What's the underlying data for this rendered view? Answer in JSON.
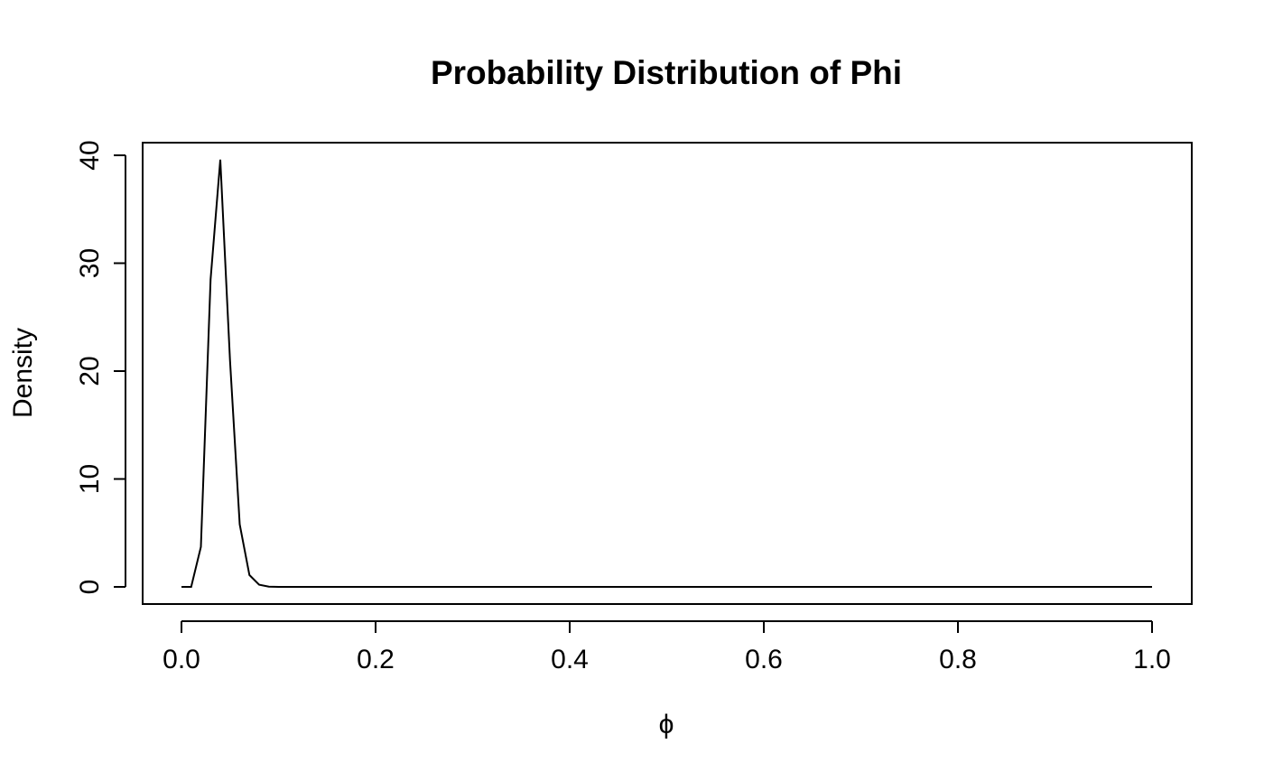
{
  "chart_data": {
    "type": "line",
    "title": "Probability Distribution of Phi",
    "xlabel": "ϕ",
    "ylabel": "Density",
    "xlim": [
      0.0,
      1.0
    ],
    "ylim": [
      0,
      40
    ],
    "grid": false,
    "x_ticks": [
      0.0,
      0.2,
      0.4,
      0.6,
      0.8,
      1.0
    ],
    "x_tick_labels": [
      "0.0",
      "0.2",
      "0.4",
      "0.6",
      "0.8",
      "1.0"
    ],
    "y_ticks": [
      0,
      10,
      20,
      30,
      40
    ],
    "y_tick_labels": [
      "0",
      "10",
      "20",
      "30",
      "40"
    ],
    "series": [
      {
        "color": "#000000",
        "x": [
          0.0,
          0.01,
          0.02,
          0.03,
          0.04,
          0.05,
          0.06,
          0.07,
          0.08,
          0.09,
          0.1,
          0.2,
          0.3,
          0.4,
          0.5,
          0.6,
          0.7,
          0.8,
          0.9,
          1.0
        ],
        "y": [
          0,
          0,
          3.7,
          28.5,
          39.6,
          21.0,
          5.8,
          1.1,
          0.2,
          0.02,
          0,
          0,
          0,
          0,
          0,
          0,
          0,
          0,
          0,
          0
        ]
      }
    ]
  }
}
